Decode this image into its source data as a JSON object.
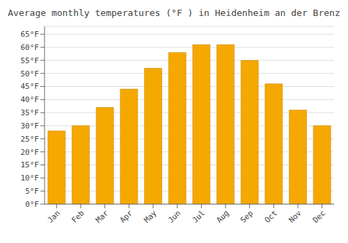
{
  "chart_data": {
    "type": "bar",
    "title": "Average monthly temperatures (°F ) in Heidenheim an der Brenz",
    "categories": [
      "Jan",
      "Feb",
      "Mar",
      "Apr",
      "May",
      "Jun",
      "Jul",
      "Aug",
      "Sep",
      "Oct",
      "Nov",
      "Dec"
    ],
    "values": [
      28,
      30,
      37,
      44,
      52,
      58,
      61,
      61,
      55,
      46,
      36,
      30
    ],
    "color": "#F5A800",
    "ylim": [
      0,
      68
    ],
    "yticks": [
      {
        "value": 0,
        "label": "0°F"
      },
      {
        "value": 5,
        "label": "5°F"
      },
      {
        "value": 10,
        "label": "10°F"
      },
      {
        "value": 15,
        "label": "15°F"
      },
      {
        "value": 20,
        "label": "20°F"
      },
      {
        "value": 25,
        "label": "25°F"
      },
      {
        "value": 30,
        "label": "30°F"
      },
      {
        "value": 35,
        "label": "35°F"
      },
      {
        "value": 40,
        "label": "40°F"
      },
      {
        "value": 45,
        "label": "45°F"
      },
      {
        "value": 50,
        "label": "50°F"
      },
      {
        "value": 55,
        "label": "55°F"
      },
      {
        "value": 60,
        "label": "60°F"
      },
      {
        "value": 65,
        "label": "65°F"
      }
    ],
    "grid": true
  }
}
